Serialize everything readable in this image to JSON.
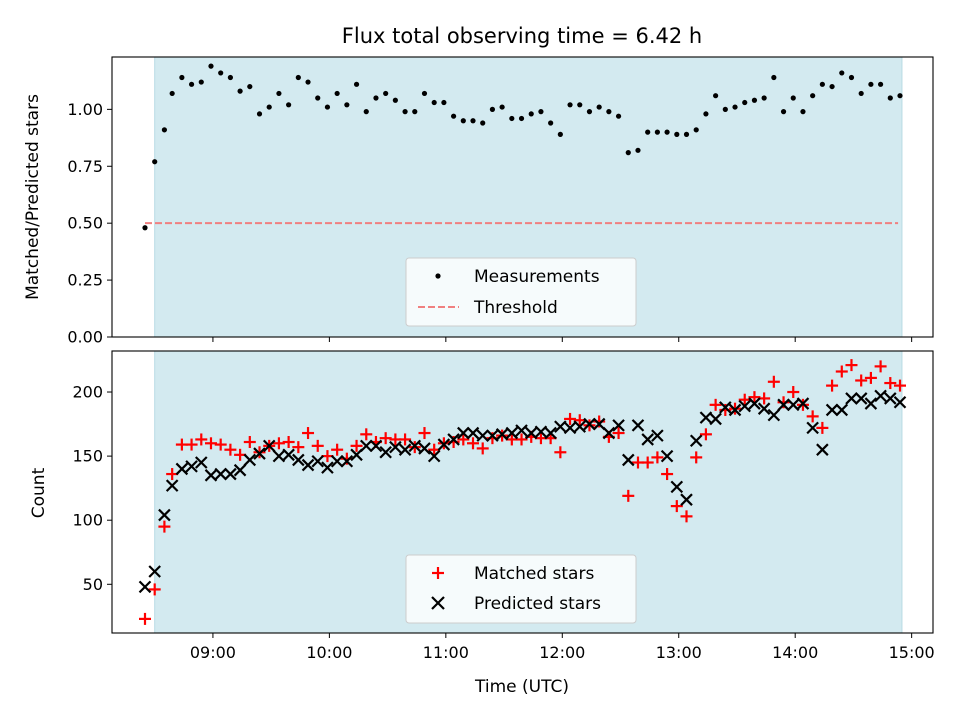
{
  "chart_data": [
    {
      "type": "scatter",
      "title": "Flux total observing time = 6.42 h",
      "xlabel": "",
      "ylabel": "Matched/Predicted stars",
      "xlim": [
        "08:08",
        "15:11"
      ],
      "ylim": [
        0.0,
        1.23
      ],
      "yticks": [
        "0.00",
        "0.25",
        "0.50",
        "0.75",
        "1.00"
      ],
      "shaded_span": [
        "08:30",
        "14:55"
      ],
      "shade_color": "#d3eaf0",
      "legend_position": "lower center",
      "threshold": {
        "name": "Threshold",
        "value": 0.5,
        "x_range": [
          "08:25",
          "14:53"
        ],
        "color": "#f08080",
        "style": "dashed"
      },
      "series": [
        {
          "name": "Measurements",
          "marker": "dot",
          "color": "#000000",
          "points": [
            [
              "08:25",
              0.48
            ],
            [
              "08:30",
              0.77
            ],
            [
              "08:35",
              0.91
            ],
            [
              "08:39",
              1.07
            ],
            [
              "08:44",
              1.14
            ],
            [
              "08:49",
              1.11
            ],
            [
              "08:54",
              1.12
            ],
            [
              "08:59",
              1.19
            ],
            [
              "09:04",
              1.16
            ],
            [
              "09:09",
              1.14
            ],
            [
              "09:14",
              1.08
            ],
            [
              "09:19",
              1.1
            ],
            [
              "09:24",
              0.98
            ],
            [
              "09:29",
              1.01
            ],
            [
              "09:34",
              1.07
            ],
            [
              "09:39",
              1.02
            ],
            [
              "09:44",
              1.14
            ],
            [
              "09:49",
              1.12
            ],
            [
              "09:54",
              1.05
            ],
            [
              "09:59",
              1.01
            ],
            [
              "10:04",
              1.07
            ],
            [
              "10:09",
              1.02
            ],
            [
              "10:14",
              1.11
            ],
            [
              "10:19",
              0.99
            ],
            [
              "10:24",
              1.05
            ],
            [
              "10:29",
              1.07
            ],
            [
              "10:34",
              1.04
            ],
            [
              "10:39",
              0.99
            ],
            [
              "10:44",
              0.99
            ],
            [
              "10:49",
              1.07
            ],
            [
              "10:54",
              1.03
            ],
            [
              "10:59",
              1.03
            ],
            [
              "11:04",
              0.97
            ],
            [
              "11:09",
              0.95
            ],
            [
              "11:14",
              0.95
            ],
            [
              "11:19",
              0.94
            ],
            [
              "11:24",
              1.0
            ],
            [
              "11:29",
              1.01
            ],
            [
              "11:34",
              0.96
            ],
            [
              "11:39",
              0.96
            ],
            [
              "11:44",
              0.98
            ],
            [
              "11:49",
              0.99
            ],
            [
              "11:54",
              0.94
            ],
            [
              "11:59",
              0.89
            ],
            [
              "12:04",
              1.02
            ],
            [
              "12:09",
              1.02
            ],
            [
              "12:14",
              0.99
            ],
            [
              "12:19",
              1.01
            ],
            [
              "12:24",
              0.99
            ],
            [
              "12:29",
              0.97
            ],
            [
              "12:34",
              0.81
            ],
            [
              "12:39",
              0.82
            ],
            [
              "12:44",
              0.9
            ],
            [
              "12:49",
              0.9
            ],
            [
              "12:54",
              0.9
            ],
            [
              "12:59",
              0.89
            ],
            [
              "13:04",
              0.89
            ],
            [
              "13:09",
              0.91
            ],
            [
              "13:14",
              0.98
            ],
            [
              "13:19",
              1.06
            ],
            [
              "13:24",
              1.0
            ],
            [
              "13:29",
              1.01
            ],
            [
              "13:34",
              1.03
            ],
            [
              "13:39",
              1.04
            ],
            [
              "13:44",
              1.05
            ],
            [
              "13:49",
              1.14
            ],
            [
              "13:54",
              0.99
            ],
            [
              "13:59",
              1.05
            ],
            [
              "14:04",
              0.99
            ],
            [
              "14:09",
              1.06
            ],
            [
              "14:14",
              1.11
            ],
            [
              "14:19",
              1.1
            ],
            [
              "14:24",
              1.16
            ],
            [
              "14:29",
              1.14
            ],
            [
              "14:34",
              1.07
            ],
            [
              "14:39",
              1.11
            ],
            [
              "14:44",
              1.11
            ],
            [
              "14:49",
              1.05
            ],
            [
              "14:54",
              1.06
            ]
          ]
        }
      ]
    },
    {
      "type": "scatter",
      "title": "",
      "xlabel": "Time (UTC)",
      "ylabel": "Count",
      "xlim": [
        "08:08",
        "15:11"
      ],
      "ylim": [
        12,
        232
      ],
      "yticks": [
        "50",
        "100",
        "150",
        "200"
      ],
      "xticks": [
        "09:00",
        "10:00",
        "11:00",
        "12:00",
        "13:00",
        "14:00",
        "15:00"
      ],
      "shaded_span": [
        "08:30",
        "14:55"
      ],
      "shade_color": "#d3eaf0",
      "legend_position": "lower center",
      "series": [
        {
          "name": "Matched stars",
          "marker": "plus",
          "color": "#ff0000",
          "points": [
            [
              "08:25",
              23
            ],
            [
              "08:30",
              46
            ],
            [
              "08:35",
              95
            ],
            [
              "08:39",
              136
            ],
            [
              "08:44",
              159
            ],
            [
              "08:49",
              159
            ],
            [
              "08:54",
              163
            ],
            [
              "08:59",
              160
            ],
            [
              "09:04",
              159
            ],
            [
              "09:09",
              155
            ],
            [
              "09:14",
              151
            ],
            [
              "09:19",
              161
            ],
            [
              "09:24",
              153
            ],
            [
              "09:29",
              158
            ],
            [
              "09:34",
              160
            ],
            [
              "09:39",
              161
            ],
            [
              "09:44",
              157
            ],
            [
              "09:49",
              168
            ],
            [
              "09:54",
              158
            ],
            [
              "09:59",
              150
            ],
            [
              "10:04",
              155
            ],
            [
              "10:09",
              148
            ],
            [
              "10:14",
              158
            ],
            [
              "10:19",
              167
            ],
            [
              "10:24",
              161
            ],
            [
              "10:29",
              164
            ],
            [
              "10:34",
              163
            ],
            [
              "10:39",
              163
            ],
            [
              "10:44",
              157
            ],
            [
              "10:49",
              168
            ],
            [
              "10:54",
              155
            ],
            [
              "10:59",
              160
            ],
            [
              "11:04",
              161
            ],
            [
              "11:09",
              163
            ],
            [
              "11:14",
              160
            ],
            [
              "11:19",
              156
            ],
            [
              "11:24",
              164
            ],
            [
              "11:29",
              166
            ],
            [
              "11:34",
              163
            ],
            [
              "11:39",
              163
            ],
            [
              "11:44",
              165
            ],
            [
              "11:49",
              164
            ],
            [
              "11:54",
              164
            ],
            [
              "11:59",
              153
            ],
            [
              "12:04",
              179
            ],
            [
              "12:09",
              178
            ],
            [
              "12:14",
              174
            ],
            [
              "12:19",
              177
            ],
            [
              "12:24",
              165
            ],
            [
              "12:29",
              168
            ],
            [
              "12:34",
              119
            ],
            [
              "12:39",
              145
            ],
            [
              "12:44",
              145
            ],
            [
              "12:49",
              149
            ],
            [
              "12:54",
              136
            ],
            [
              "12:59",
              111
            ],
            [
              "13:04",
              103
            ],
            [
              "13:09",
              149
            ],
            [
              "13:14",
              167
            ],
            [
              "13:19",
              190
            ],
            [
              "13:24",
              186
            ],
            [
              "13:29",
              187
            ],
            [
              "13:34",
              194
            ],
            [
              "13:39",
              196
            ],
            [
              "13:44",
              195
            ],
            [
              "13:49",
              208
            ],
            [
              "13:54",
              192
            ],
            [
              "13:59",
              200
            ],
            [
              "14:04",
              190
            ],
            [
              "14:09",
              181
            ],
            [
              "14:14",
              172
            ],
            [
              "14:19",
              205
            ],
            [
              "14:24",
              216
            ],
            [
              "14:29",
              221
            ],
            [
              "14:34",
              209
            ],
            [
              "14:39",
              211
            ],
            [
              "14:44",
              220
            ],
            [
              "14:49",
              207
            ],
            [
              "14:54",
              205
            ]
          ]
        },
        {
          "name": "Predicted stars",
          "marker": "x",
          "color": "#000000",
          "points": [
            [
              "08:25",
              48
            ],
            [
              "08:30",
              60
            ],
            [
              "08:35",
              104
            ],
            [
              "08:39",
              127
            ],
            [
              "08:44",
              140
            ],
            [
              "08:49",
              142
            ],
            [
              "08:54",
              145
            ],
            [
              "08:59",
              135
            ],
            [
              "09:04",
              136
            ],
            [
              "09:09",
              136
            ],
            [
              "09:14",
              139
            ],
            [
              "09:19",
              147
            ],
            [
              "09:24",
              152
            ],
            [
              "09:29",
              158
            ],
            [
              "09:34",
              150
            ],
            [
              "09:39",
              151
            ],
            [
              "09:44",
              147
            ],
            [
              "09:49",
              143
            ],
            [
              "09:54",
              146
            ],
            [
              "09:59",
              141
            ],
            [
              "10:04",
              146
            ],
            [
              "10:09",
              146
            ],
            [
              "10:14",
              151
            ],
            [
              "10:19",
              158
            ],
            [
              "10:24",
              158
            ],
            [
              "10:29",
              153
            ],
            [
              "10:34",
              157
            ],
            [
              "10:39",
              155
            ],
            [
              "10:44",
              158
            ],
            [
              "10:49",
              156
            ],
            [
              "10:54",
              150
            ],
            [
              "10:59",
              159
            ],
            [
              "11:04",
              163
            ],
            [
              "11:09",
              168
            ],
            [
              "11:14",
              168
            ],
            [
              "11:19",
              166
            ],
            [
              "11:24",
              166
            ],
            [
              "11:29",
              167
            ],
            [
              "11:34",
              168
            ],
            [
              "11:39",
              170
            ],
            [
              "11:44",
              168
            ],
            [
              "11:49",
              169
            ],
            [
              "11:54",
              168
            ],
            [
              "11:59",
              173
            ],
            [
              "12:04",
              172
            ],
            [
              "12:09",
              173
            ],
            [
              "12:14",
              175
            ],
            [
              "12:19",
              175
            ],
            [
              "12:24",
              168
            ],
            [
              "12:29",
              174
            ],
            [
              "12:34",
              147
            ],
            [
              "12:39",
              174
            ],
            [
              "12:44",
              163
            ],
            [
              "12:49",
              166
            ],
            [
              "12:54",
              150
            ],
            [
              "12:59",
              126
            ],
            [
              "13:04",
              116
            ],
            [
              "13:09",
              162
            ],
            [
              "13:14",
              180
            ],
            [
              "13:19",
              179
            ],
            [
              "13:24",
              188
            ],
            [
              "13:29",
              186
            ],
            [
              "13:34",
              189
            ],
            [
              "13:39",
              191
            ],
            [
              "13:44",
              187
            ],
            [
              "13:49",
              182
            ],
            [
              "13:54",
              190
            ],
            [
              "13:59",
              190
            ],
            [
              "14:04",
              191
            ],
            [
              "14:09",
              172
            ],
            [
              "14:14",
              155
            ],
            [
              "14:19",
              186
            ],
            [
              "14:24",
              186
            ],
            [
              "14:29",
              195
            ],
            [
              "14:34",
              195
            ],
            [
              "14:39",
              191
            ],
            [
              "14:44",
              197
            ],
            [
              "14:49",
              195
            ],
            [
              "14:54",
              192
            ]
          ]
        }
      ]
    }
  ]
}
